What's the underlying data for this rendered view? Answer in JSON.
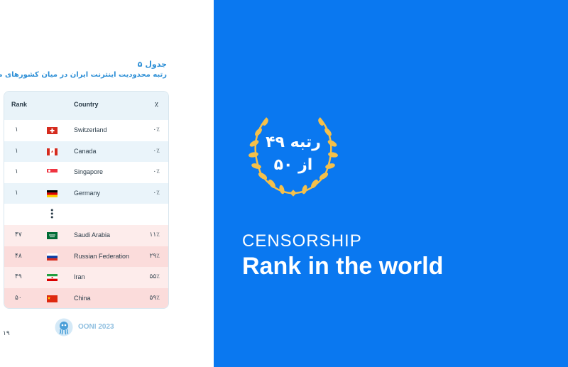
{
  "left_page": {
    "caption_title": "جدول ۵",
    "caption_subtitle": "رتبه محدودیت اینترنت ایران در میان کشورهای منتخب",
    "table": {
      "headers": {
        "rank": "Rank",
        "country": "Country",
        "pct": "٪"
      },
      "rows": [
        {
          "rank": "۱",
          "country": "Switzerland",
          "pct": "۰٪",
          "flag": "switzerland-flag"
        },
        {
          "rank": "۱",
          "country": "Canada",
          "pct": "۰٪",
          "flag": "canada-flag"
        },
        {
          "rank": "۱",
          "country": "Singapore",
          "pct": "۰٪",
          "flag": "singapore-flag"
        },
        {
          "rank": "۱",
          "country": "Germany",
          "pct": "۰٪",
          "flag": "germany-flag"
        },
        {
          "rank": "۴۷",
          "country": "Saudi Arabia",
          "pct": "۱۱٪",
          "flag": "saudi-arabia-flag"
        },
        {
          "rank": "۴۸",
          "country": "Russian Federation",
          "pct": "۲۹٪",
          "flag": "russia-flag"
        },
        {
          "rank": "۴۹",
          "country": "Iran",
          "pct": "۵۵٪",
          "flag": "iran-flag"
        },
        {
          "rank": "۵۰",
          "country": "China",
          "pct": "۵۹٪",
          "flag": "china-flag"
        }
      ],
      "ellipsis": "⋮"
    },
    "footer_logo_text": "OONI 2023",
    "page_number": "۱۹"
  },
  "right_page": {
    "badge_line1": "رتبه ۴۹",
    "badge_line2": "از ۵۰",
    "heading_small": "CENSORSHIP",
    "heading_large": "Rank in the world",
    "background_color": "#0a78f0",
    "laurel_color": "#f5c04a"
  }
}
